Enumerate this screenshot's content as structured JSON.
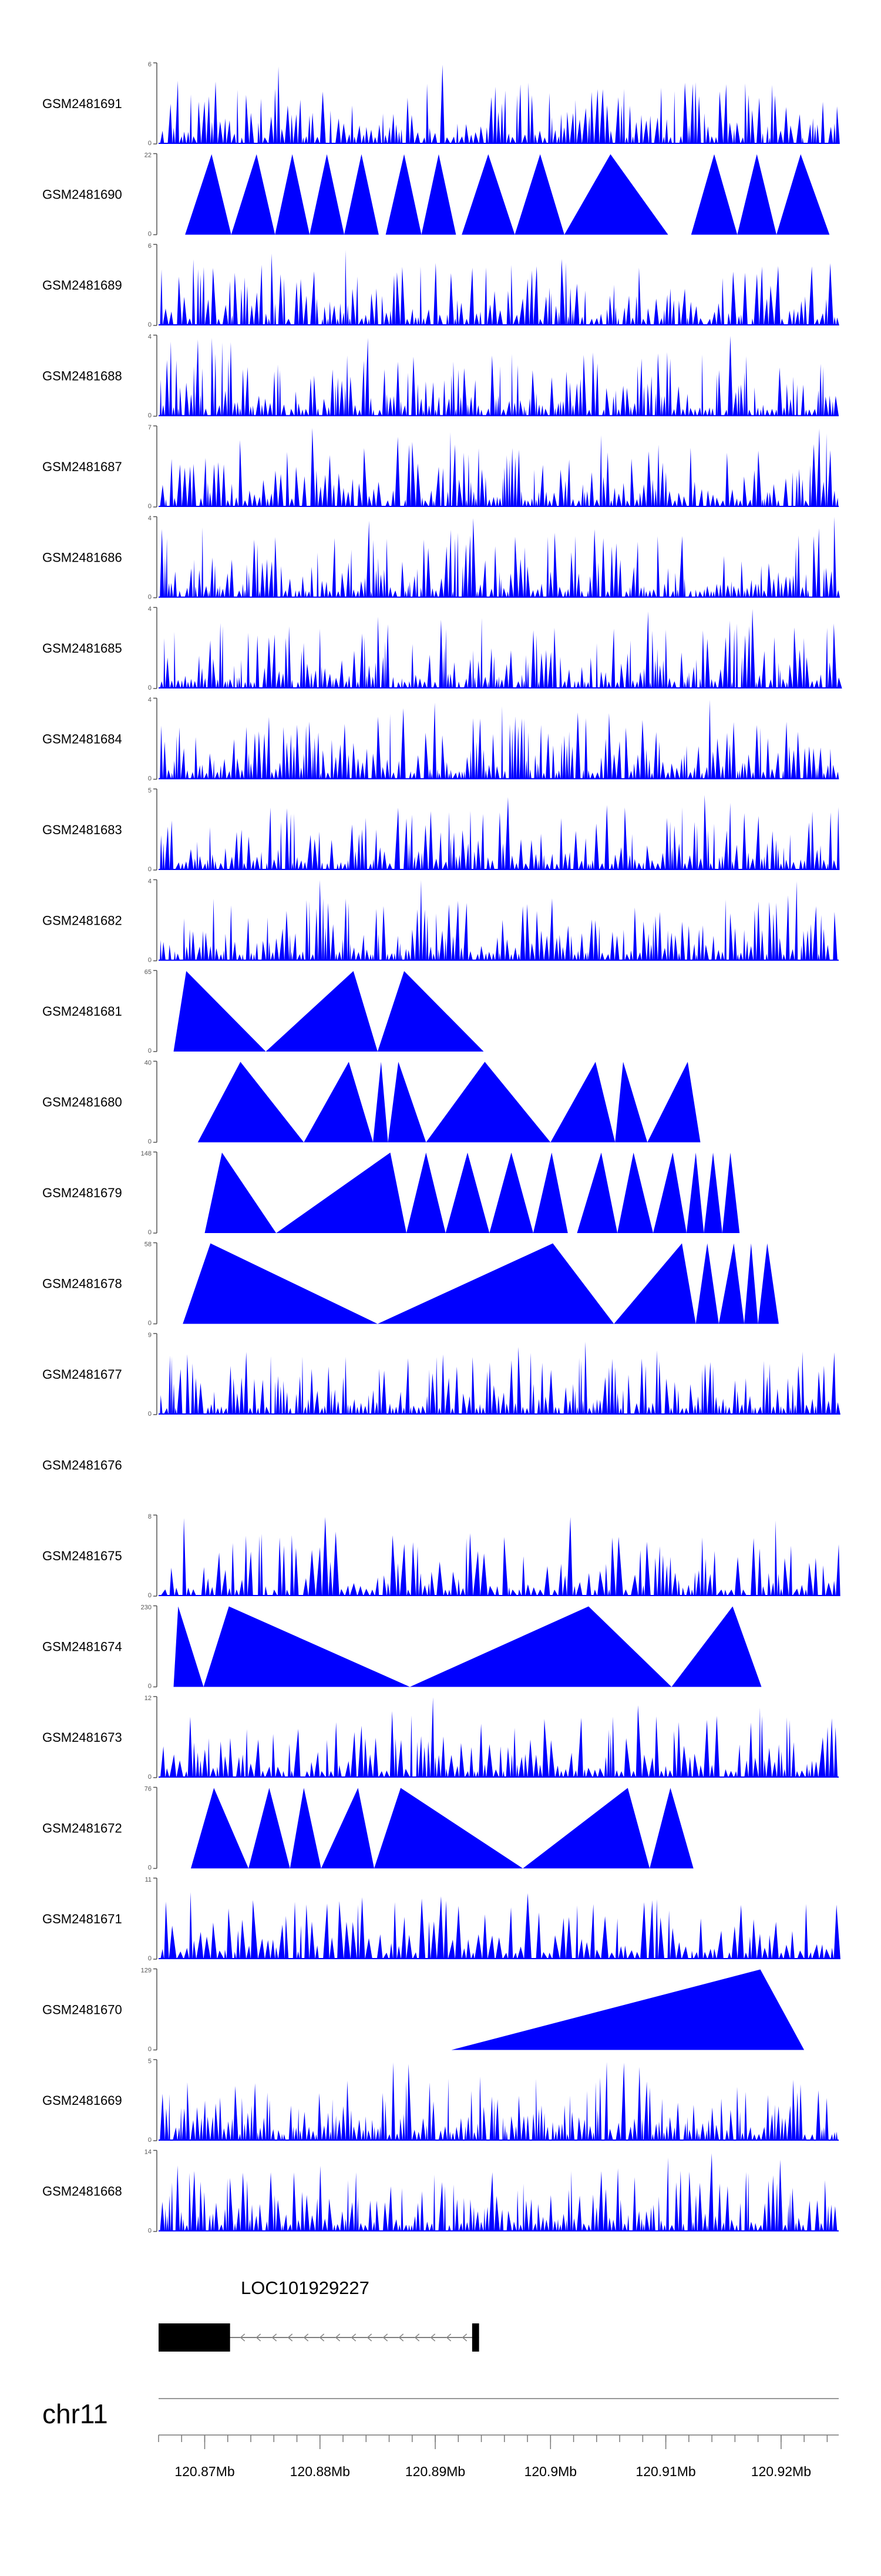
{
  "chart_data": {
    "type": "area",
    "title": "",
    "x_range": [
      120.866,
      120.925
    ],
    "x_unit": "Mb",
    "series": [
      {
        "name": "GSM2481691",
        "ymax": 6,
        "min": 0,
        "max": 6,
        "density": 140,
        "style": "dense",
        "seed": 1
      },
      {
        "name": "GSM2481690",
        "ymax": 22,
        "min": 0,
        "max": 22,
        "style": "peaks",
        "seed": 2,
        "peaks": [
          [
            120.8683,
            120.8706,
            120.8723
          ],
          [
            120.8723,
            120.8745,
            120.8761
          ],
          [
            120.8761,
            120.8776,
            120.8791
          ],
          [
            120.8791,
            120.8806,
            120.8821
          ],
          [
            120.8821,
            120.8836,
            120.8851
          ],
          [
            120.8857,
            120.8873,
            120.8888
          ],
          [
            120.8888,
            120.8903,
            120.8918
          ],
          [
            120.8923,
            120.8946,
            120.8969
          ],
          [
            120.8969,
            120.8991,
            120.9012
          ],
          [
            120.9012,
            120.9052,
            120.9102
          ],
          [
            120.9122,
            120.9142,
            120.9162
          ],
          [
            120.9162,
            120.9179,
            120.9196
          ],
          [
            120.9196,
            120.9217,
            120.9242
          ]
        ]
      },
      {
        "name": "GSM2481689",
        "ymax": 6,
        "min": 0,
        "max": 6,
        "density": 140,
        "style": "dense",
        "seed": 3
      },
      {
        "name": "GSM2481688",
        "ymax": 4,
        "min": 0,
        "max": 4,
        "density": 160,
        "style": "dense",
        "seed": 4
      },
      {
        "name": "GSM2481687",
        "ymax": 7,
        "min": 0,
        "max": 7,
        "density": 150,
        "style": "dense",
        "seed": 5
      },
      {
        "name": "GSM2481686",
        "ymax": 4,
        "min": 0,
        "max": 4,
        "density": 160,
        "style": "dense",
        "seed": 6
      },
      {
        "name": "GSM2481685",
        "ymax": 4,
        "min": 0,
        "max": 4,
        "density": 160,
        "style": "dense",
        "seed": 7
      },
      {
        "name": "GSM2481684",
        "ymax": 4,
        "min": 0,
        "max": 4,
        "density": 160,
        "style": "dense",
        "seed": 8
      },
      {
        "name": "GSM2481683",
        "ymax": 5,
        "min": 0,
        "max": 5,
        "density": 150,
        "style": "dense",
        "seed": 9
      },
      {
        "name": "GSM2481682",
        "ymax": 4,
        "min": 0,
        "max": 4,
        "density": 160,
        "style": "dense",
        "seed": 10
      },
      {
        "name": "GSM2481681",
        "ymax": 65,
        "min": 0,
        "max": 65,
        "style": "peaks",
        "seed": 11,
        "peaks": [
          [
            120.8673,
            120.8684,
            120.8753
          ],
          [
            120.8753,
            120.8829,
            120.885
          ],
          [
            120.885,
            120.8873,
            120.8942
          ]
        ]
      },
      {
        "name": "GSM2481680",
        "ymax": 40,
        "min": 0,
        "max": 40,
        "style": "peaks",
        "seed": 12,
        "peaks": [
          [
            120.8694,
            120.8731,
            120.8786
          ],
          [
            120.8786,
            120.8825,
            120.8846
          ],
          [
            120.8846,
            120.8853,
            120.8859
          ],
          [
            120.8859,
            120.8868,
            120.8892
          ],
          [
            120.8892,
            120.8943,
            120.9
          ],
          [
            120.9,
            120.9039,
            120.9056
          ],
          [
            120.9056,
            120.9063,
            120.9084
          ],
          [
            120.9084,
            120.9119,
            120.913
          ]
        ]
      },
      {
        "name": "GSM2481679",
        "ymax": 148,
        "min": 0,
        "max": 148,
        "style": "peaks",
        "seed": 13,
        "peaks": [
          [
            120.87,
            120.8715,
            120.8762
          ],
          [
            120.8762,
            120.8861,
            120.8875
          ],
          [
            120.8875,
            120.8892,
            120.8909
          ],
          [
            120.8909,
            120.8928,
            120.8947
          ],
          [
            120.8947,
            120.8966,
            120.8985
          ],
          [
            120.8985,
            120.9001,
            120.9015
          ],
          [
            120.9023,
            120.9044,
            120.9058
          ],
          [
            120.9058,
            120.9072,
            120.9089
          ],
          [
            120.9089,
            120.9106,
            120.9118
          ],
          [
            120.9118,
            120.9126,
            120.9133
          ],
          [
            120.9133,
            120.9141,
            120.9149
          ],
          [
            120.9149,
            120.9156,
            120.9164
          ]
        ]
      },
      {
        "name": "GSM2481678",
        "ymax": 58,
        "min": 0,
        "max": 58,
        "style": "peaks",
        "seed": 14,
        "peaks": [
          [
            120.8681,
            120.8705,
            120.885
          ],
          [
            120.885,
            120.9002,
            120.9055
          ],
          [
            120.9055,
            120.9114,
            120.9126
          ],
          [
            120.9126,
            120.9136,
            120.9146
          ],
          [
            120.9146,
            120.9159,
            120.9168
          ],
          [
            120.9168,
            120.9174,
            120.918
          ],
          [
            120.918,
            120.9188,
            120.9198
          ]
        ]
      },
      {
        "name": "GSM2481677",
        "ymax": 9,
        "min": 0,
        "max": 9,
        "density": 150,
        "style": "dense",
        "seed": 15
      },
      {
        "name": "GSM2481676",
        "ymax": null,
        "min": null,
        "max": null,
        "style": "empty",
        "seed": 16
      },
      {
        "name": "GSM2481675",
        "ymax": 8,
        "min": 0,
        "max": 8,
        "density": 110,
        "style": "dense",
        "seed": 17
      },
      {
        "name": "GSM2481674",
        "ymax": 230,
        "min": 0,
        "max": 230,
        "style": "peaks",
        "seed": 18,
        "peaks": [
          [
            120.8673,
            120.8677,
            120.8699
          ],
          [
            120.8699,
            120.8721,
            120.8878
          ],
          [
            120.8878,
            120.9033,
            120.9105
          ],
          [
            120.9105,
            120.9158,
            120.9183
          ]
        ]
      },
      {
        "name": "GSM2481673",
        "ymax": 12,
        "min": 0,
        "max": 12,
        "density": 120,
        "style": "dense",
        "seed": 19
      },
      {
        "name": "GSM2481672",
        "ymax": 76,
        "min": 0,
        "max": 76,
        "style": "peaks",
        "seed": 20,
        "peaks": [
          [
            120.8688,
            120.8708,
            120.8738
          ],
          [
            120.8738,
            120.8756,
            120.8774
          ],
          [
            120.8774,
            120.8786,
            120.8801
          ],
          [
            120.8801,
            120.8833,
            120.8847
          ],
          [
            120.8847,
            120.887,
            120.8976
          ],
          [
            120.8976,
            120.9067,
            120.9086
          ],
          [
            120.9086,
            120.9104,
            120.9124
          ]
        ]
      },
      {
        "name": "GSM2481671",
        "ymax": 11,
        "min": 0,
        "max": 11,
        "density": 110,
        "style": "dense",
        "seed": 21
      },
      {
        "name": "GSM2481670",
        "ymax": 129,
        "min": 0,
        "max": 129,
        "style": "peaks",
        "seed": 22,
        "peaks": [
          [
            120.8914,
            120.9182,
            120.922
          ]
        ]
      },
      {
        "name": "GSM2481669",
        "ymax": 5,
        "min": 0,
        "max": 5,
        "density": 160,
        "style": "dense",
        "seed": 23
      },
      {
        "name": "GSM2481668",
        "ymax": 14,
        "min": 0,
        "max": 14,
        "density": 150,
        "style": "dense",
        "seed": 24
      }
    ],
    "gene": {
      "label": "LOC101929227",
      "start": 120.866,
      "end": 120.8938,
      "thick_end": 120.8722,
      "exon2_start": 120.8932,
      "strand": "-"
    },
    "chromosome": {
      "label": "chr11"
    },
    "ticks": {
      "major": [
        "120.87Mb",
        "120.88Mb",
        "120.89Mb",
        "120.9Mb",
        "120.91Mb",
        "120.92Mb"
      ],
      "major_values": [
        120.87,
        120.88,
        120.89,
        120.9,
        120.91,
        120.92
      ],
      "minor_step": 0.002
    }
  },
  "colors": {
    "fill": "#0000ff",
    "axis": "#555555",
    "gene": "#000000",
    "text": "#000000"
  }
}
